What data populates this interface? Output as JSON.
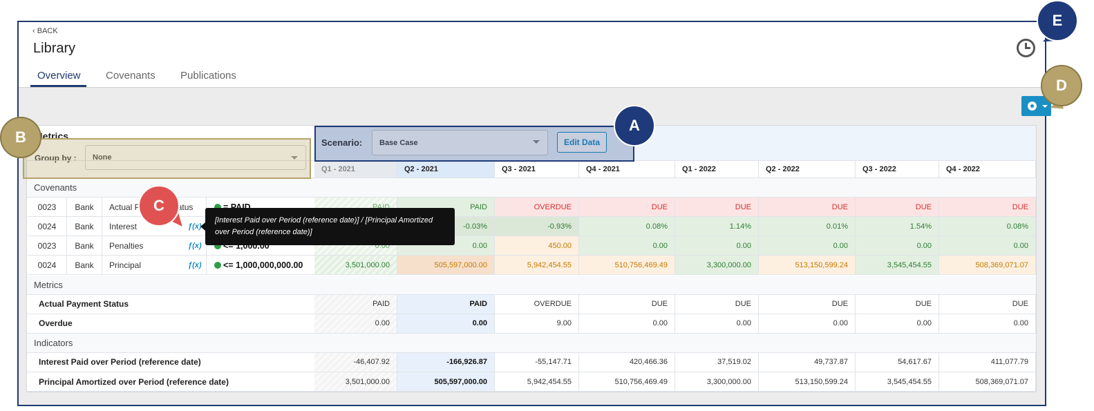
{
  "header": {
    "back": "BACK",
    "title": "Library",
    "tabs": [
      "Overview",
      "Covenants",
      "Publications"
    ]
  },
  "panel": {
    "title": "Metrics",
    "group_by_label": "Group by :",
    "group_by_value": "None",
    "scenario_label": "Scenario:",
    "scenario_value": "Base Case",
    "edit_button": "Edit Data"
  },
  "table": {
    "columns": [
      "Q1 - 2021",
      "Q2 - 2021",
      "Q3 - 2021",
      "Q4 - 2021",
      "Q1 - 2022",
      "Q2 - 2022",
      "Q3 - 2022",
      "Q4 - 2022"
    ],
    "sections": [
      {
        "title": "Covenants",
        "rows": [
          {
            "cells": [
              "0023",
              "Bank",
              "Actual Payment Status",
              "= PAID"
            ],
            "values": [
              "PAID",
              "PAID",
              "OVERDUE",
              "DUE",
              "DUE",
              "DUE",
              "DUE",
              "DUE"
            ],
            "colors": [
              "#eaf3e8",
              "#e3f0e1",
              "#fde4e4",
              "#fde4e4",
              "#fde4e4",
              "#fde4e4",
              "#fde4e4",
              "#fde4e4"
            ],
            "text_colors": [
              "#6aa86a",
              "#2e7d32",
              "#d32f2f",
              "#d32f2f",
              "#d32f2f",
              "#d32f2f",
              "#d32f2f",
              "#d32f2f"
            ]
          },
          {
            "cells": [
              "0024",
              "Bank",
              "Interest"
            ],
            "formula": "ƒ(x)",
            "values": [
              null,
              "-0.03%",
              "-0.93%",
              "0.08%",
              "1.14%",
              "0.01%",
              "1.54%",
              "0.08%"
            ],
            "colors": [
              "#dfe8dd",
              "#dbe8d8",
              "#dbe8d8",
              "#e3f0e1",
              "#e3f0e1",
              "#e3f0e1",
              "#e3f0e1",
              "#e3f0e1"
            ],
            "text_colors": [
              "#2e7d32",
              "#2e7d32",
              "#2e7d32",
              "#2e7d32",
              "#2e7d32",
              "#2e7d32",
              "#2e7d32",
              "#2e7d32"
            ]
          },
          {
            "cells": [
              "0023",
              "Bank",
              "Penalties",
              "<= 1,000.00"
            ],
            "formula": "ƒ(x)",
            "values": [
              "0.00",
              "0.00",
              "450.00",
              "0.00",
              "0.00",
              "0.00",
              "0.00",
              "0.00"
            ],
            "colors": [
              "#eaf3e8",
              "#e3f0e1",
              "#fdf0e0",
              "#e3f0e1",
              "#e3f0e1",
              "#e3f0e1",
              "#e3f0e1",
              "#e3f0e1"
            ],
            "text_colors": [
              "#6aa86a",
              "#2e7d32",
              "#c77a00",
              "#2e7d32",
              "#2e7d32",
              "#2e7d32",
              "#2e7d32",
              "#2e7d32"
            ]
          },
          {
            "cells": [
              "0024",
              "Bank",
              "Principal",
              "<= 1,000,000,000.00"
            ],
            "formula": "ƒ(x)",
            "values": [
              "3,501,000.00",
              "505,597,000.00",
              "5,942,454.55",
              "510,756,469.49",
              "3,300,000.00",
              "513,150,599.24",
              "3,545,454.55",
              "508,369,071.07"
            ],
            "colors": [
              "#e3f0e1",
              "#f6e0cc",
              "#fdf0e0",
              "#fdf0e0",
              "#e3f0e1",
              "#fdf0e0",
              "#e3f0e1",
              "#fdf0e0"
            ],
            "text_colors": [
              "#2e7d32",
              "#c77a00",
              "#c77a00",
              "#c77a00",
              "#2e7d32",
              "#c77a00",
              "#2e7d32",
              "#c77a00"
            ]
          }
        ]
      },
      {
        "title": "Metrics",
        "rows": [
          {
            "cells": [
              "Actual Payment Status"
            ],
            "values": [
              "PAID",
              "PAID",
              "OVERDUE",
              "DUE",
              "DUE",
              "DUE",
              "DUE",
              "DUE"
            ]
          },
          {
            "cells": [
              "Overdue"
            ],
            "values": [
              "0.00",
              "0.00",
              "9.00",
              "0.00",
              "0.00",
              "0.00",
              "0.00",
              "0.00"
            ]
          }
        ]
      },
      {
        "title": "Indicators",
        "rows": [
          {
            "cells": [
              "Interest Paid over Period (reference date)"
            ],
            "values": [
              "-46,407.92",
              "-166,926.87",
              "-55,147.71",
              "420,466.36",
              "37,519.02",
              "49,737.87",
              "54,617.67",
              "411,077.79"
            ]
          },
          {
            "cells": [
              "Principal Amortized over Period (reference date)"
            ],
            "values": [
              "3,501,000.00",
              "505,597,000.00",
              "5,942,454.55",
              "510,756,469.49",
              "3,300,000.00",
              "513,150,599.24",
              "3,545,454.55",
              "508,369,071.07"
            ]
          }
        ]
      }
    ]
  },
  "tooltip": "[Interest Paid over Period (reference date)] / [Principal Amortized over Period (reference date)]",
  "callouts": [
    "A",
    "B",
    "C",
    "D",
    "E"
  ]
}
